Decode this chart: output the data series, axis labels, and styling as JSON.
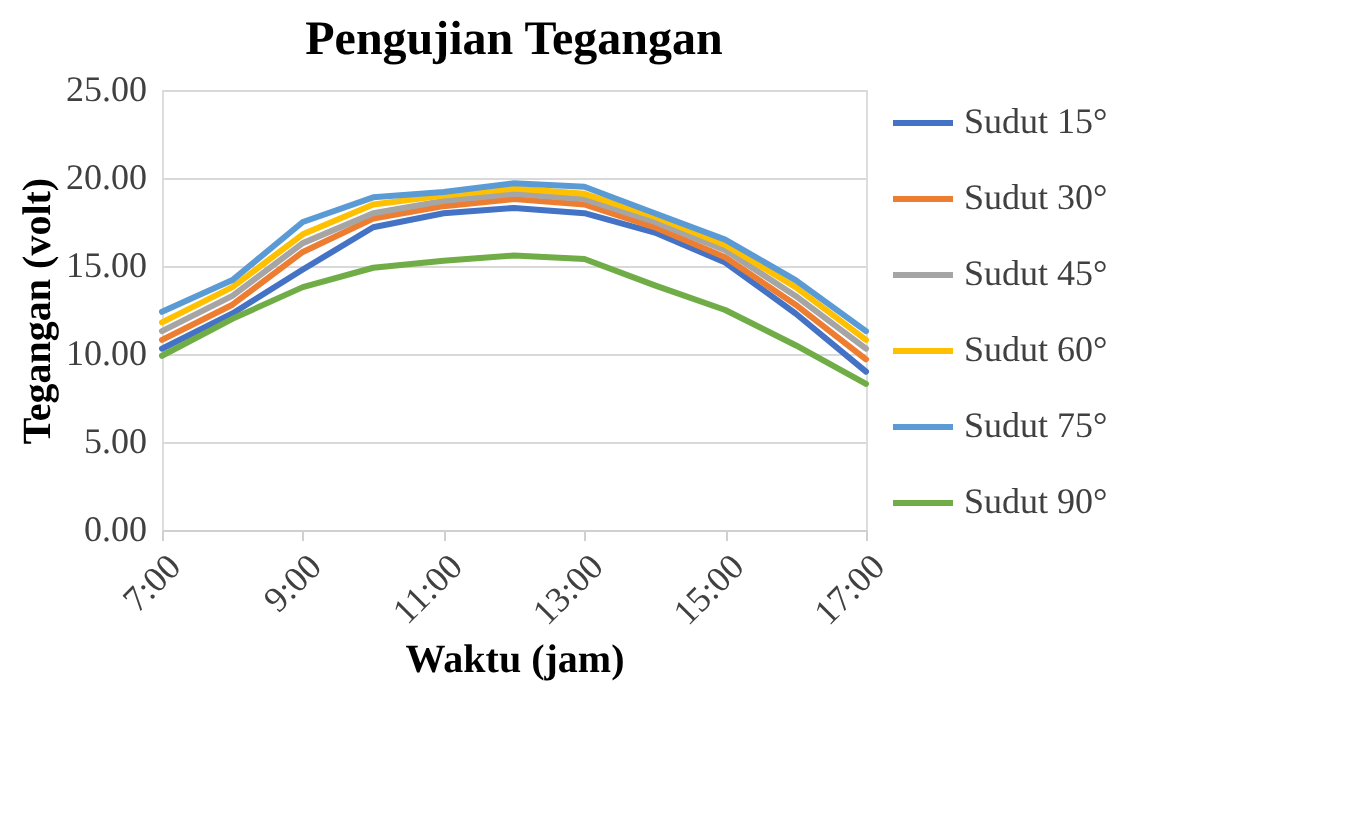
{
  "chart_data": {
    "type": "line",
    "title": "Pengujian Tegangan",
    "xlabel": "Waktu (jam)",
    "ylabel": "Tegangan (volt)",
    "x": [
      7,
      8,
      9,
      10,
      11,
      12,
      13,
      14,
      15,
      16,
      17
    ],
    "xlim": [
      7,
      17
    ],
    "xticks": [
      {
        "value": 7,
        "label": "7:00"
      },
      {
        "value": 9,
        "label": "9:00"
      },
      {
        "value": 11,
        "label": "11:00"
      },
      {
        "value": 13,
        "label": "13:00"
      },
      {
        "value": 15,
        "label": "15:00"
      },
      {
        "value": 17,
        "label": "17:00"
      }
    ],
    "ylim": [
      0,
      25
    ],
    "yticks": [
      {
        "value": 0,
        "label": "0.00"
      },
      {
        "value": 5,
        "label": "5.00"
      },
      {
        "value": 10,
        "label": "10.00"
      },
      {
        "value": 15,
        "label": "15.00"
      },
      {
        "value": 20,
        "label": "20.00"
      },
      {
        "value": 25,
        "label": "25.00"
      }
    ],
    "grid": "y",
    "legend": "right",
    "marker": "none",
    "line_style": "solid",
    "series": [
      {
        "name": "Sudut 15°",
        "color": "#4472c4",
        "values": [
          10.3,
          12.3,
          14.8,
          17.2,
          18.0,
          18.3,
          18.0,
          16.9,
          15.2,
          12.3,
          9.0
        ]
      },
      {
        "name": "Sudut 30°",
        "color": "#ed7d31",
        "values": [
          10.8,
          12.8,
          15.8,
          17.7,
          18.4,
          18.8,
          18.5,
          17.2,
          15.5,
          12.8,
          9.7
        ]
      },
      {
        "name": "Sudut 45°",
        "color": "#a5a5a5",
        "values": [
          11.3,
          13.3,
          16.3,
          18.0,
          18.7,
          19.1,
          18.8,
          17.5,
          15.9,
          13.3,
          10.3
        ]
      },
      {
        "name": "Sudut 60°",
        "color": "#ffc000",
        "values": [
          11.8,
          13.8,
          16.8,
          18.5,
          19.0,
          19.4,
          19.1,
          17.8,
          16.2,
          13.8,
          10.8
        ]
      },
      {
        "name": "Sudut 75°",
        "color": "#5b9bd5",
        "values": [
          12.4,
          14.2,
          17.5,
          18.9,
          19.2,
          19.7,
          19.5,
          18.0,
          16.5,
          14.2,
          11.3
        ]
      },
      {
        "name": "Sudut 90°",
        "color": "#70ad47",
        "values": [
          9.9,
          12.0,
          13.8,
          14.9,
          15.3,
          15.6,
          15.4,
          13.9,
          12.5,
          10.5,
          8.3
        ]
      }
    ]
  }
}
